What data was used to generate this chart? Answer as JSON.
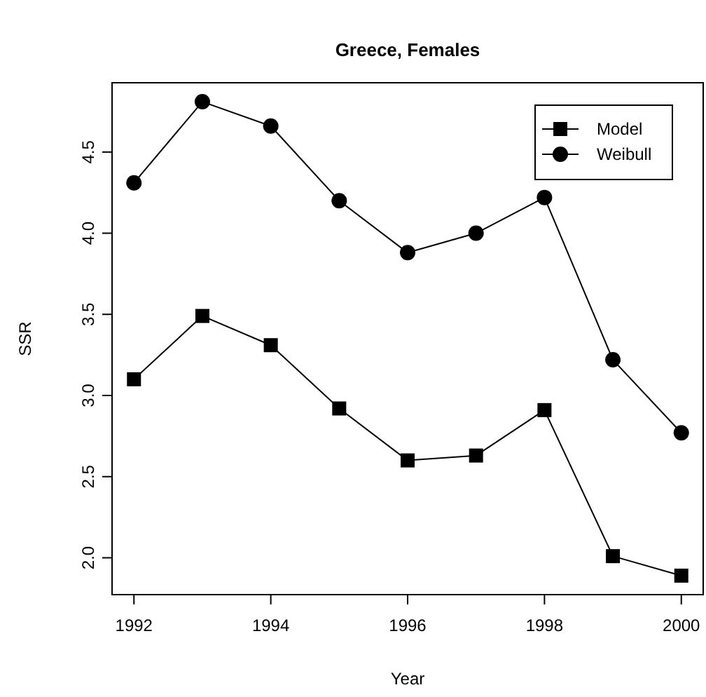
{
  "chart_data": {
    "type": "line",
    "title": "Greece, Females",
    "xlabel": "Year",
    "ylabel": "SSR",
    "x": [
      1992,
      1993,
      1994,
      1995,
      1996,
      1997,
      1998,
      1999,
      2000
    ],
    "series": [
      {
        "name": "Model",
        "color": "#000000",
        "marker": "square",
        "values": [
          3.1,
          3.49,
          3.31,
          2.92,
          2.6,
          2.63,
          2.91,
          2.01,
          1.89
        ]
      },
      {
        "name": "Weibull",
        "color": "#000000",
        "marker": "circle",
        "values": [
          4.31,
          4.81,
          4.66,
          4.2,
          3.88,
          4.0,
          4.22,
          3.22,
          2.77
        ]
      }
    ],
    "xlim": [
      1991.68,
      2000.32
    ],
    "xticks": [
      1992,
      1994,
      1996,
      1998,
      2000
    ],
    "ylim": [
      1.773,
      4.927
    ],
    "yticks": [
      {
        "value": 2,
        "label": "2.0"
      },
      {
        "value": 2.5,
        "label": "2.5"
      },
      {
        "value": 3,
        "label": "3.0"
      },
      {
        "value": 3.5,
        "label": "3.5"
      },
      {
        "value": 4,
        "label": "4.0"
      },
      {
        "value": 4.5,
        "label": "4.5"
      }
    ],
    "legend": "top right",
    "grid": false,
    "line_style": "solid"
  }
}
